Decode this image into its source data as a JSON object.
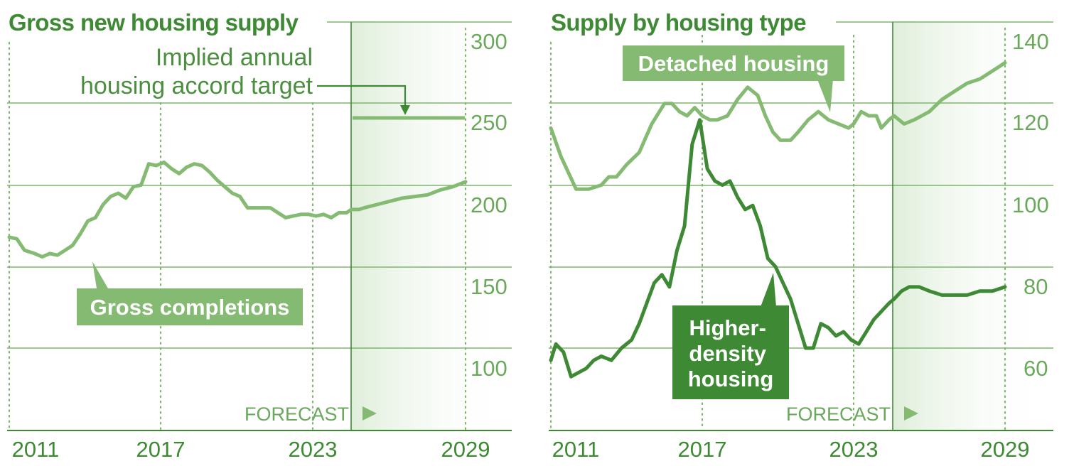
{
  "chart_data": [
    {
      "type": "line",
      "title": "Gross new housing supply",
      "x_ticks": [
        "2011",
        "2017",
        "2023",
        "2029"
      ],
      "y_ticks": [
        "100",
        "150",
        "200",
        "250",
        "300"
      ],
      "ylim": [
        60,
        300
      ],
      "xlim": [
        2010.9,
        2031
      ],
      "forecast_start": 2024.5,
      "forecast_label": "FORECAST",
      "target_label_lines": [
        "Implied annual",
        "housing accord target"
      ],
      "series": [
        {
          "name": "Gross completions",
          "style": "light",
          "x": [
            2011.0,
            2011.3,
            2011.6,
            2012.0,
            2012.3,
            2012.6,
            2012.9,
            2013.2,
            2013.5,
            2013.8,
            2014.1,
            2014.4,
            2014.7,
            2015.0,
            2015.3,
            2015.6,
            2015.9,
            2016.2,
            2016.5,
            2016.8,
            2017.1,
            2017.4,
            2017.7,
            2018.0,
            2018.3,
            2018.6,
            2018.9,
            2019.2,
            2019.5,
            2019.8,
            2020.1,
            2020.4,
            2020.7,
            2021.0,
            2021.3,
            2021.6,
            2021.9,
            2022.2,
            2022.5,
            2022.8,
            2023.1,
            2023.4,
            2023.7,
            2024.0,
            2024.3,
            2024.5,
            2024.8,
            2025.0,
            2025.5,
            2026.0,
            2026.5,
            2027.0,
            2027.5,
            2028.0,
            2028.5,
            2029.0
          ],
          "values": [
            168,
            167,
            160,
            158,
            156,
            158,
            157,
            160,
            163,
            170,
            178,
            180,
            188,
            193,
            195,
            192,
            199,
            200,
            213,
            212,
            214,
            210,
            207,
            211,
            213,
            212,
            208,
            203,
            199,
            195,
            193,
            186,
            186,
            186,
            186,
            183,
            180,
            181,
            182,
            182,
            181,
            182,
            180,
            183,
            183,
            185,
            185,
            186,
            188,
            190,
            192,
            193,
            194,
            197,
            199,
            202
          ]
        }
      ]
    },
    {
      "type": "line",
      "title": "Supply by housing type",
      "x_ticks": [
        "2011",
        "2017",
        "2023",
        "2029"
      ],
      "y_ticks": [
        "60",
        "80",
        "100",
        "120",
        "140"
      ],
      "ylim": [
        45,
        140
      ],
      "xlim": [
        2010.9,
        2031
      ],
      "forecast_start": 2024.5,
      "forecast_label": "FORECAST",
      "series": [
        {
          "name": "Detached housing",
          "style": "light",
          "x": [
            2011.0,
            2011.4,
            2012.0,
            2012.5,
            2013.0,
            2013.3,
            2013.6,
            2014.0,
            2014.5,
            2015.0,
            2015.5,
            2015.8,
            2016.1,
            2016.4,
            2016.7,
            2017.0,
            2017.3,
            2017.6,
            2018.0,
            2018.4,
            2018.8,
            2019.2,
            2019.5,
            2019.8,
            2020.1,
            2020.5,
            2020.8,
            2021.2,
            2021.6,
            2022.0,
            2022.4,
            2022.8,
            2023.0,
            2023.3,
            2023.6,
            2023.9,
            2024.1,
            2024.4,
            2024.6,
            2024.8,
            2025.0,
            2025.4,
            2026.0,
            2026.5,
            2027.0,
            2027.5,
            2028.0,
            2028.5,
            2029.0
          ],
          "values": [
            114,
            107,
            99,
            99,
            100,
            102,
            102,
            105,
            108,
            115,
            120,
            120,
            118,
            117,
            119,
            117,
            116,
            116,
            117,
            121,
            124,
            122,
            117,
            113,
            111,
            111,
            113,
            116,
            118,
            116,
            115,
            114,
            115,
            118,
            117,
            117,
            114,
            116,
            117,
            116,
            115,
            116,
            118,
            121,
            123,
            125,
            126,
            128,
            130
          ]
        },
        {
          "name": "Higher-density housing",
          "style": "dark",
          "x": [
            2011.0,
            2011.2,
            2011.5,
            2011.8,
            2012.1,
            2012.4,
            2012.7,
            2013.0,
            2013.4,
            2013.8,
            2014.2,
            2014.5,
            2014.8,
            2015.1,
            2015.4,
            2015.7,
            2016.0,
            2016.3,
            2016.6,
            2016.9,
            2017.2,
            2017.5,
            2017.8,
            2018.1,
            2018.4,
            2018.7,
            2019.0,
            2019.3,
            2019.6,
            2019.9,
            2020.2,
            2020.5,
            2020.8,
            2021.1,
            2021.4,
            2021.7,
            2022.0,
            2022.3,
            2022.6,
            2022.9,
            2023.2,
            2023.5,
            2023.8,
            2024.1,
            2024.4,
            2024.6,
            2024.9,
            2025.2,
            2025.6,
            2026.0,
            2026.5,
            2027.0,
            2027.5,
            2028.0,
            2028.5,
            2029.0
          ],
          "values": [
            57,
            61,
            59,
            53,
            54,
            55,
            57,
            58,
            57,
            60,
            62,
            66,
            71,
            76,
            78,
            75,
            84,
            90,
            110,
            116,
            104,
            101,
            100,
            101,
            97,
            94,
            95,
            90,
            82,
            80,
            76,
            72,
            66,
            60,
            60,
            66,
            65,
            63,
            64,
            62,
            61,
            64,
            67,
            69,
            71,
            72,
            74,
            75,
            75,
            74,
            73,
            73,
            73,
            74,
            74,
            75
          ]
        }
      ]
    }
  ]
}
